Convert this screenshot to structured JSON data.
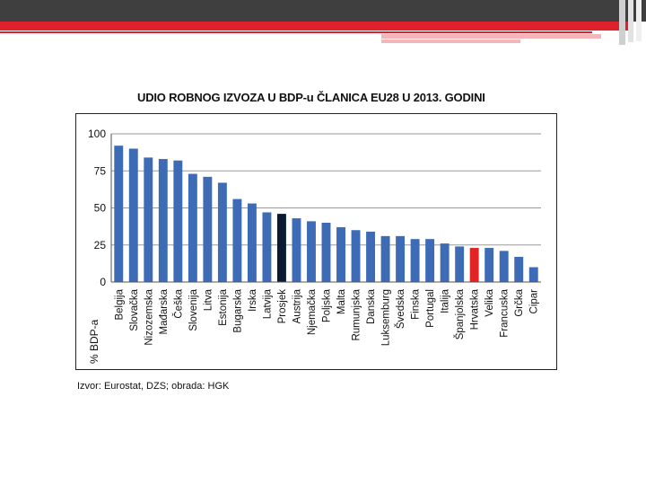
{
  "chart_data": {
    "type": "bar",
    "title": "UDIO ROBNOG IZVOZA U BDP-u ČLANICA EU28 U 2013. GODINI",
    "ylabel": "% BDP-a",
    "xlabel": "",
    "ylim": [
      0,
      100
    ],
    "yticks": [
      0,
      25,
      50,
      75,
      100
    ],
    "grid": true,
    "categories": [
      "Belgija",
      "Slovačka",
      "Nizozemska",
      "Mađarska",
      "Češka",
      "Slovenija",
      "Litva",
      "Estonija",
      "Bugarska",
      "Irska",
      "Latvija",
      "Prosjek",
      "Austrija",
      "Njemačka",
      "Poljska",
      "Malta",
      "Rumunjska",
      "Danska",
      "Luksemburg",
      "Švedska",
      "Finska",
      "Portugal",
      "Italija",
      "Španjolska",
      "Hrvatska",
      "Velika",
      "Francuska",
      "Grčka",
      "Cipar"
    ],
    "values": [
      92,
      90,
      84,
      83,
      82,
      73,
      71,
      67,
      56,
      53,
      47,
      46,
      43,
      41,
      40,
      37,
      35,
      34,
      31,
      31,
      29,
      29,
      26,
      24,
      23,
      23,
      21,
      17,
      10
    ],
    "colors": {
      "default": "#3d6bb5",
      "Prosjek": "#0a1a33",
      "Hrvatska": "#e02424"
    }
  },
  "source": "Izvor: Eurostat, DZS; obrada: HGK"
}
